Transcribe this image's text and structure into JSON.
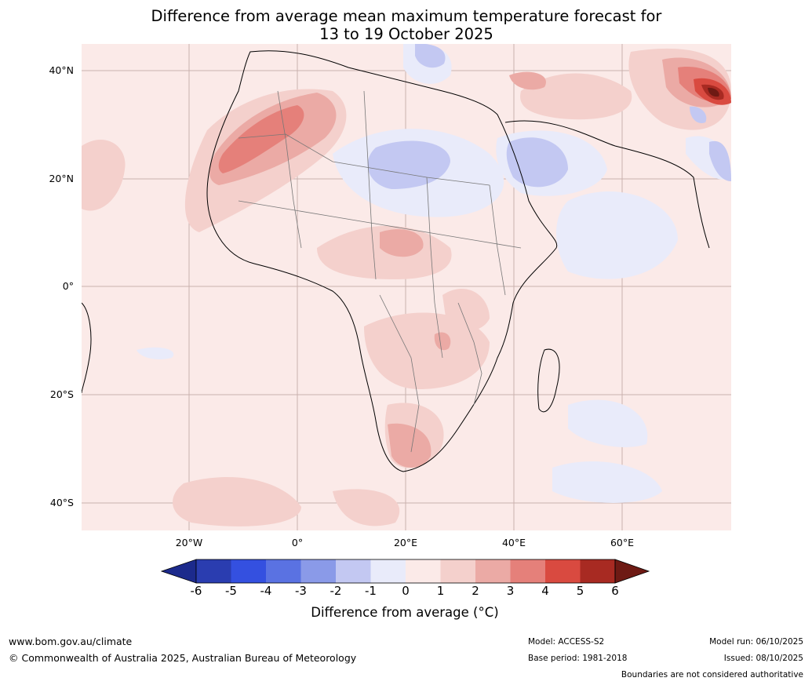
{
  "title": {
    "line1": "Difference from average mean maximum temperature forecast for",
    "line2": "13 to 19 October 2025"
  },
  "map": {
    "lat_ticks": [
      "40°N",
      "20°N",
      "0°",
      "20°S",
      "40°S"
    ],
    "lon_ticks": [
      "20°W",
      "0°",
      "20°E",
      "40°E",
      "60°E"
    ],
    "background_color": "#fbeae8"
  },
  "colorbar": {
    "ticks": [
      "-6",
      "-5",
      "-4",
      "-3",
      "-2",
      "-1",
      "0",
      "1",
      "2",
      "3",
      "4",
      "5",
      "6"
    ],
    "colors": [
      "#1c2a8c",
      "#2a3db0",
      "#3450e0",
      "#5a72e2",
      "#8a9ae8",
      "#c3c8f2",
      "#e9ebfa",
      "#fbeae8",
      "#f4d0cc",
      "#ebaaa5",
      "#e5807a",
      "#d94a40",
      "#a82a22",
      "#6e1a14"
    ],
    "label": "Difference from average (°C)"
  },
  "footer": {
    "website": "www.bom.gov.au/climate",
    "copyright": "© Commonwealth of Australia 2025, Australian Bureau of Meteorology",
    "model": "Model: ACCESS-S2",
    "base_period": "Base period: 1981-2018",
    "model_run": "Model run: 06/10/2025",
    "issued": "Issued: 08/10/2025",
    "disclaimer": "Boundaries are not considered authoritative"
  }
}
